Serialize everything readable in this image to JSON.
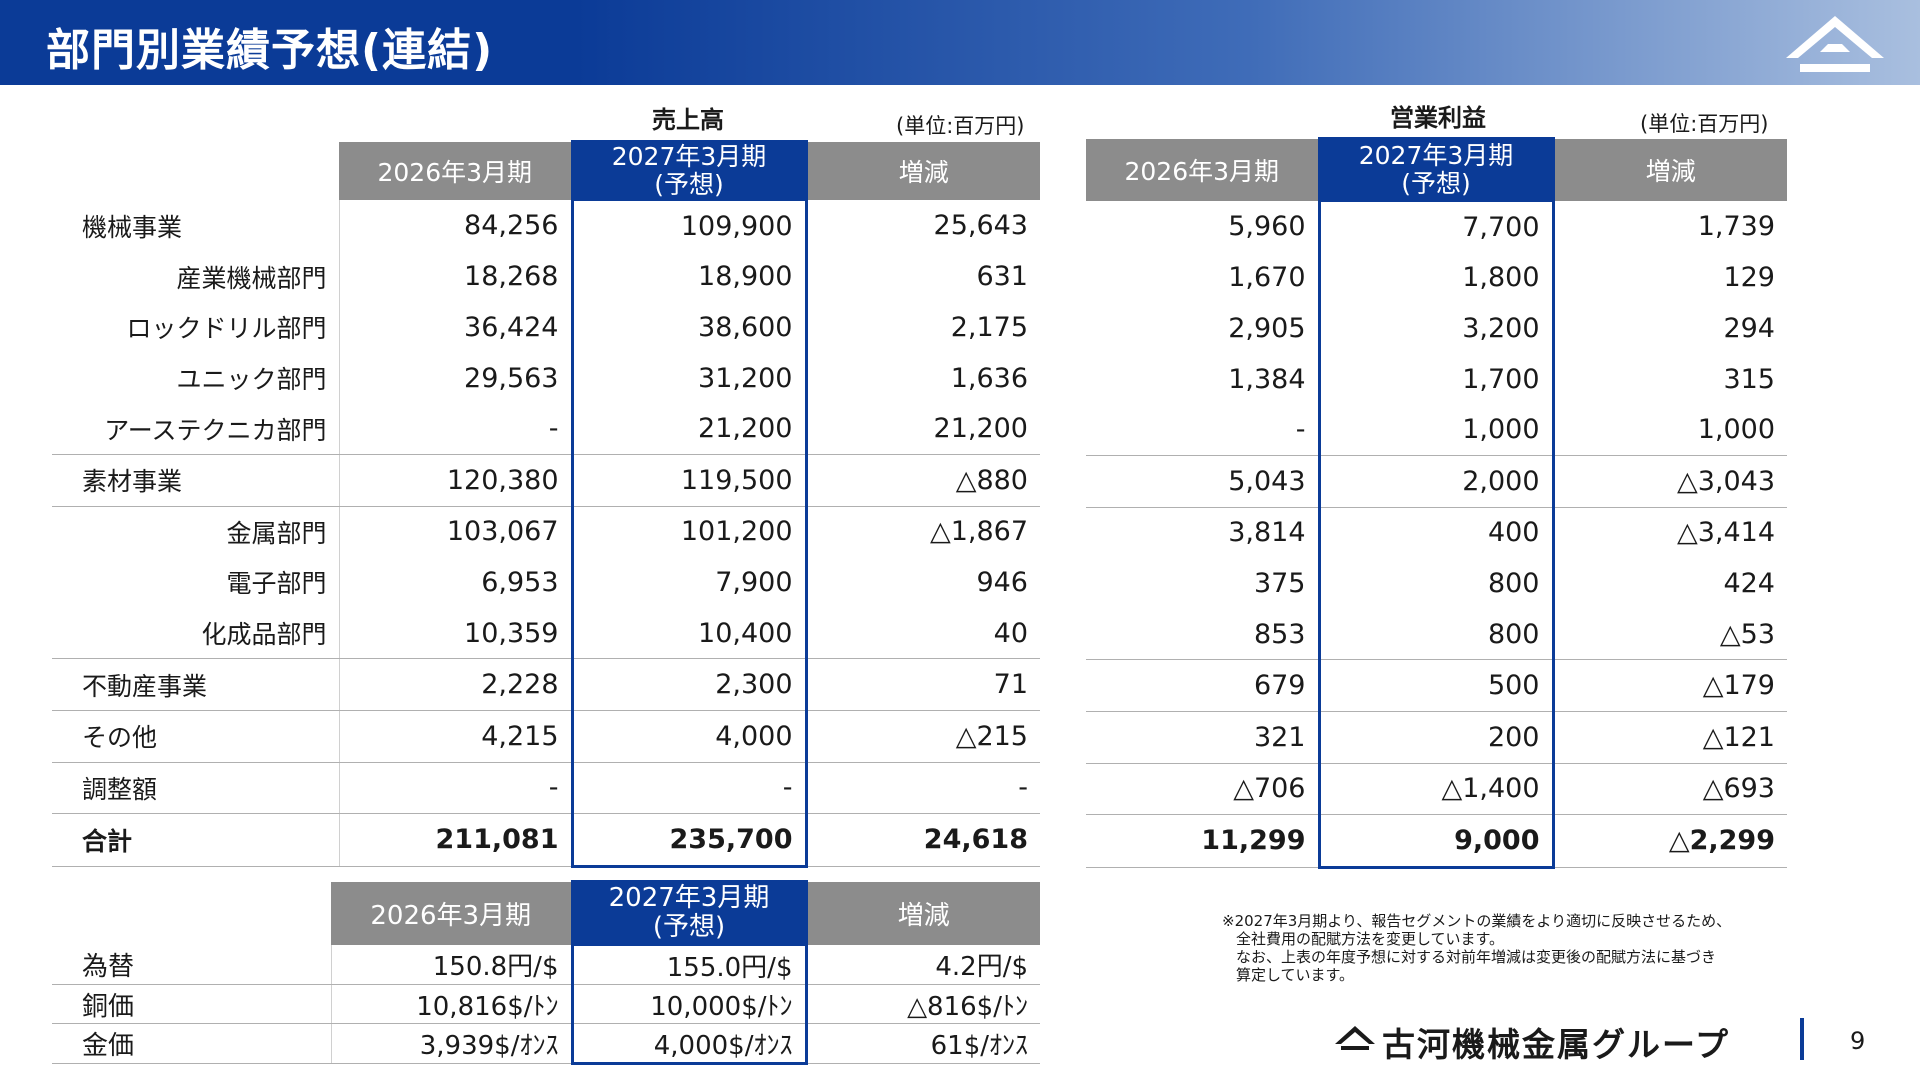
{
  "title": "部門別業績予想(連結)",
  "sales": {
    "caption": "売上高",
    "unit": "(単位:百万円)",
    "headers": [
      "2026年3月期",
      "2027年3月期",
      "(予想)",
      "増減"
    ],
    "rows": [
      {
        "label": "機械事業",
        "a": "84,256",
        "b": "109,900",
        "c": "25,643"
      },
      {
        "label": "産業機械部門",
        "a": "18,268",
        "b": "18,900",
        "c": "631"
      },
      {
        "label": "ロックドリル部門",
        "a": "36,424",
        "b": "38,600",
        "c": "2,175"
      },
      {
        "label": "ユニック部門",
        "a": "29,563",
        "b": "31,200",
        "c": "1,636"
      },
      {
        "label": "アーステクニカ部門",
        "a": "-",
        "b": "21,200",
        "c": "21,200"
      },
      {
        "label": "素材事業",
        "a": "120,380",
        "b": "119,500",
        "c": "△880"
      },
      {
        "label": "金属部門",
        "a": "103,067",
        "b": "101,200",
        "c": "△1,867"
      },
      {
        "label": "電子部門",
        "a": "6,953",
        "b": "7,900",
        "c": "946"
      },
      {
        "label": "化成品部門",
        "a": "10,359",
        "b": "10,400",
        "c": "40"
      },
      {
        "label": "不動産事業",
        "a": "2,228",
        "b": "2,300",
        "c": "71"
      },
      {
        "label": "その他",
        "a": "4,215",
        "b": "4,000",
        "c": "△215"
      },
      {
        "label": "調整額",
        "a": "-",
        "b": "-",
        "c": "-"
      },
      {
        "label": "合計",
        "a": "211,081",
        "b": "235,700",
        "c": "24,618"
      }
    ]
  },
  "op": {
    "caption": "営業利益",
    "unit": "(単位:百万円)",
    "headers": [
      "2026年3月期",
      "2027年3月期",
      "(予想)",
      "増減"
    ],
    "rows": [
      {
        "a": "5,960",
        "b": "7,700",
        "c": "1,739"
      },
      {
        "a": "1,670",
        "b": "1,800",
        "c": "129"
      },
      {
        "a": "2,905",
        "b": "3,200",
        "c": "294"
      },
      {
        "a": "1,384",
        "b": "1,700",
        "c": "315"
      },
      {
        "a": "-",
        "b": "1,000",
        "c": "1,000"
      },
      {
        "a": "5,043",
        "b": "2,000",
        "c": "△3,043"
      },
      {
        "a": "3,814",
        "b": "400",
        "c": "△3,414"
      },
      {
        "a": "375",
        "b": "800",
        "c": "424"
      },
      {
        "a": "853",
        "b": "800",
        "c": "△53"
      },
      {
        "a": "679",
        "b": "500",
        "c": "△179"
      },
      {
        "a": "321",
        "b": "200",
        "c": "△121"
      },
      {
        "a": "△706",
        "b": "△1,400",
        "c": "△693"
      },
      {
        "a": "11,299",
        "b": "9,000",
        "c": "△2,299"
      }
    ]
  },
  "fx": {
    "headers": [
      "2026年3月期",
      "2027年3月期",
      "(予想)",
      "増減"
    ],
    "rows": [
      {
        "label": "為替",
        "a": "150.8円/$",
        "b": "155.0円/$",
        "c": "4.2円/$"
      },
      {
        "label": "銅価",
        "a": "10,816$/ﾄﾝ",
        "b": "10,000$/ﾄﾝ",
        "c": "△816$/ﾄﾝ"
      },
      {
        "label": "金価",
        "a": "3,939$/ｵﾝｽ",
        "b": "4,000$/ｵﾝｽ",
        "c": "61$/ｵﾝｽ"
      }
    ]
  },
  "note": [
    "※2027年3月期より、報告セグメントの業績をより適切に反映させるため、",
    "全社費用の配賦方法を変更しています。",
    "なお、上表の年度予想に対する対前年増減は変更後の配賦方法に基づき",
    "算定しています。"
  ],
  "brand": "古河機械金属グループ",
  "page_number": "9",
  "colors": {
    "accent": "#0b3b97",
    "header_gray": "#8c8c8c"
  }
}
